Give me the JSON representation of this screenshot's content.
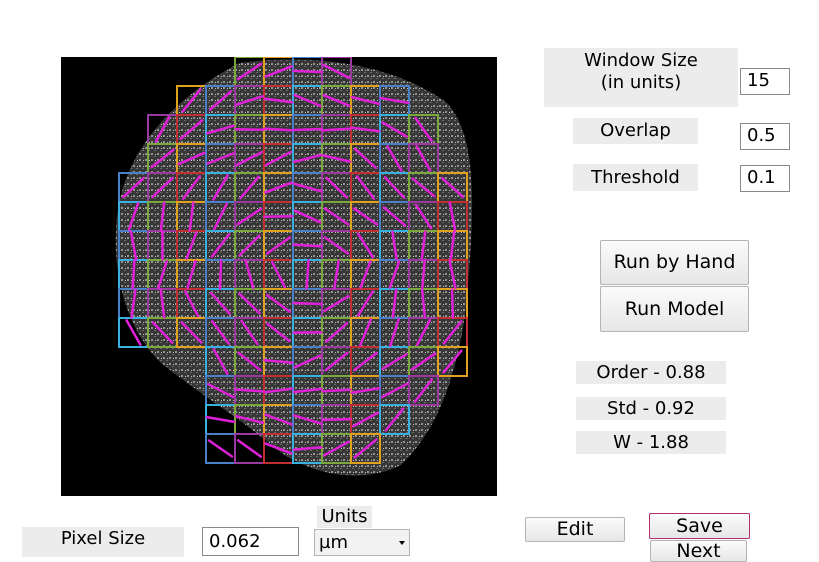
{
  "controls": {
    "window_size": {
      "label_line1": "Window Size",
      "label_line2": "(in units)",
      "value": "15"
    },
    "overlap": {
      "label": "Overlap",
      "value": "0.5"
    },
    "threshold": {
      "label": "Threshold",
      "value": "0.1"
    }
  },
  "buttons": {
    "run_by_hand": "Run by Hand",
    "run_model": "Run Model",
    "edit": "Edit",
    "save": "Save",
    "next": "Next"
  },
  "results": {
    "order": "Order - 0.88",
    "std": "Std - 0.92",
    "w": "W - 1.88"
  },
  "pixel_size": {
    "label": "Pixel Size",
    "value": "0.062"
  },
  "units": {
    "label": "Units",
    "selected": "µm"
  },
  "colors": {
    "vector": "#e020d8",
    "grid": [
      "#e0a020",
      "#7aa83a",
      "#3ab0e0",
      "#c03030",
      "#9a3aa0",
      "#4a80c8"
    ],
    "save_border": "#b03070"
  },
  "icons": {
    "dropdown": "chevron-down-icon"
  }
}
